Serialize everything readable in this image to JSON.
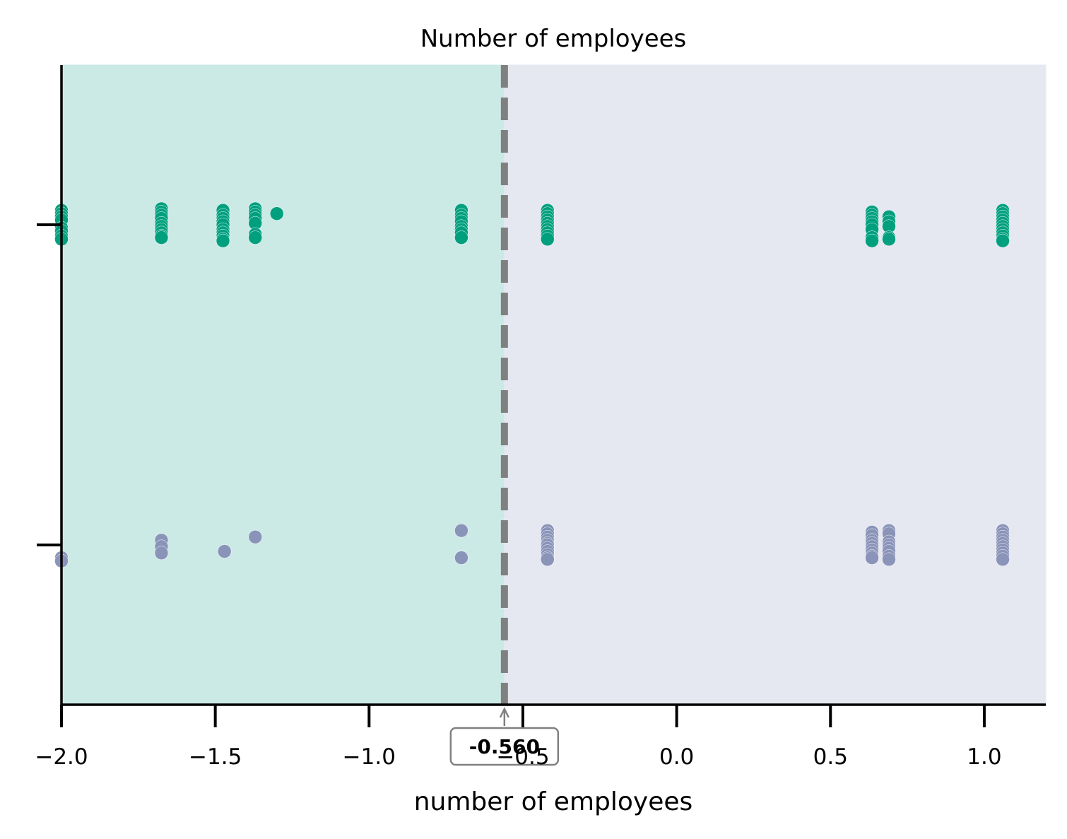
{
  "chart_data": {
    "type": "scatter",
    "title": "Number of employees",
    "xlabel": "number of employees",
    "ylabel": "",
    "xlim": [
      -2.0,
      1.2
    ],
    "x_ticks": [
      -2.0,
      -1.5,
      -1.0,
      -0.5,
      0.0,
      0.5,
      1.0
    ],
    "x_tick_labels": [
      "−2.0",
      "−1.5",
      "−1.0",
      "−0.5",
      "0.0",
      "0.5",
      "1.0"
    ],
    "y_categories": 2,
    "grid": false,
    "legend": "none",
    "threshold": {
      "value": -0.56,
      "label": "-0.560",
      "color": "#808080"
    },
    "regions": [
      {
        "from": -2.0,
        "to": -0.56,
        "color": "#cceae5"
      },
      {
        "from": -0.56,
        "to": 1.2,
        "color": "#e5e8f1"
      }
    ],
    "series": [
      {
        "category_index": 0,
        "color": "#8a93b8",
        "points": [
          [
            -2.0,
            0.08
          ],
          [
            -2.0,
            0.1
          ],
          [
            -1.675,
            -0.03
          ],
          [
            -1.675,
            0.01
          ],
          [
            -1.675,
            0.05
          ],
          [
            -1.47,
            0.04
          ],
          [
            -1.37,
            -0.05
          ],
          [
            -0.7,
            -0.09
          ],
          [
            -0.7,
            0.08
          ],
          [
            -0.42,
            -0.09
          ],
          [
            -0.42,
            -0.07
          ],
          [
            -0.42,
            -0.05
          ],
          [
            -0.42,
            -0.03
          ],
          [
            -0.42,
            -0.01
          ],
          [
            -0.42,
            0.0
          ],
          [
            -0.42,
            0.02
          ],
          [
            -0.42,
            0.04
          ],
          [
            -0.42,
            0.06
          ],
          [
            -0.42,
            0.08
          ],
          [
            -0.42,
            0.09
          ],
          [
            0.635,
            -0.08
          ],
          [
            0.635,
            -0.06
          ],
          [
            0.635,
            -0.03
          ],
          [
            0.635,
            -0.01
          ],
          [
            0.635,
            0.01
          ],
          [
            0.635,
            0.03
          ],
          [
            0.635,
            0.05
          ],
          [
            0.635,
            0.07
          ],
          [
            0.635,
            0.08
          ],
          [
            0.69,
            -0.09
          ],
          [
            0.69,
            -0.07
          ],
          [
            0.69,
            -0.02
          ],
          [
            0.69,
            0.0
          ],
          [
            0.69,
            0.02
          ],
          [
            0.69,
            0.04
          ],
          [
            0.69,
            0.07
          ],
          [
            0.69,
            0.09
          ],
          [
            1.06,
            -0.09
          ],
          [
            1.06,
            -0.07
          ],
          [
            1.06,
            -0.05
          ],
          [
            1.06,
            -0.03
          ],
          [
            1.06,
            -0.01
          ],
          [
            1.06,
            0.01
          ],
          [
            1.06,
            0.03
          ],
          [
            1.06,
            0.05
          ],
          [
            1.06,
            0.07
          ],
          [
            1.06,
            0.09
          ]
        ]
      },
      {
        "category_index": 1,
        "color": "#00a07e",
        "points": [
          [
            -2.0,
            -0.09
          ],
          [
            -2.0,
            -0.07
          ],
          [
            -2.0,
            -0.05
          ],
          [
            -2.0,
            -0.03
          ],
          [
            -2.0,
            0.02
          ],
          [
            -2.0,
            0.04
          ],
          [
            -2.0,
            0.07
          ],
          [
            -2.0,
            0.09
          ],
          [
            -1.675,
            -0.1
          ],
          [
            -1.675,
            -0.08
          ],
          [
            -1.675,
            -0.06
          ],
          [
            -1.675,
            -0.04
          ],
          [
            -1.675,
            -0.01
          ],
          [
            -1.675,
            0.01
          ],
          [
            -1.675,
            0.03
          ],
          [
            -1.675,
            0.05
          ],
          [
            -1.675,
            0.07
          ],
          [
            -1.675,
            0.08
          ],
          [
            -1.475,
            -0.09
          ],
          [
            -1.475,
            -0.06
          ],
          [
            -1.475,
            -0.04
          ],
          [
            -1.475,
            -0.02
          ],
          [
            -1.475,
            0.0
          ],
          [
            -1.475,
            0.03
          ],
          [
            -1.475,
            0.05
          ],
          [
            -1.475,
            0.07
          ],
          [
            -1.475,
            0.09
          ],
          [
            -1.475,
            0.1
          ],
          [
            -1.37,
            -0.1
          ],
          [
            -1.37,
            -0.08
          ],
          [
            -1.37,
            -0.06
          ],
          [
            -1.37,
            -0.04
          ],
          [
            -1.37,
            -0.01
          ],
          [
            -1.37,
            0.06
          ],
          [
            -1.37,
            0.08
          ],
          [
            -1.3,
            -0.07
          ],
          [
            -0.7,
            -0.09
          ],
          [
            -0.7,
            -0.06
          ],
          [
            -0.7,
            -0.04
          ],
          [
            -0.7,
            -0.02
          ],
          [
            -0.7,
            0.01
          ],
          [
            -0.7,
            0.03
          ],
          [
            -0.7,
            0.05
          ],
          [
            -0.7,
            0.08
          ],
          [
            -0.42,
            -0.09
          ],
          [
            -0.42,
            -0.07
          ],
          [
            -0.42,
            -0.05
          ],
          [
            -0.42,
            -0.03
          ],
          [
            -0.42,
            -0.01
          ],
          [
            -0.42,
            0.01
          ],
          [
            -0.42,
            0.03
          ],
          [
            -0.42,
            0.05
          ],
          [
            -0.42,
            0.07
          ],
          [
            -0.42,
            0.09
          ],
          [
            0.635,
            -0.08
          ],
          [
            0.635,
            -0.06
          ],
          [
            0.635,
            -0.04
          ],
          [
            0.635,
            -0.02
          ],
          [
            0.635,
            0.0
          ],
          [
            0.635,
            0.03
          ],
          [
            0.635,
            0.08
          ],
          [
            0.635,
            0.1
          ],
          [
            0.69,
            -0.05
          ],
          [
            0.69,
            -0.02
          ],
          [
            0.69,
            0.01
          ],
          [
            0.69,
            0.08
          ],
          [
            0.69,
            0.09
          ],
          [
            1.06,
            -0.09
          ],
          [
            1.06,
            -0.07
          ],
          [
            1.06,
            -0.05
          ],
          [
            1.06,
            -0.03
          ],
          [
            1.06,
            -0.01
          ],
          [
            1.06,
            0.01
          ],
          [
            1.06,
            0.03
          ],
          [
            1.06,
            0.05
          ],
          [
            1.06,
            0.07
          ],
          [
            1.06,
            0.09
          ],
          [
            1.06,
            0.1
          ]
        ]
      }
    ]
  }
}
